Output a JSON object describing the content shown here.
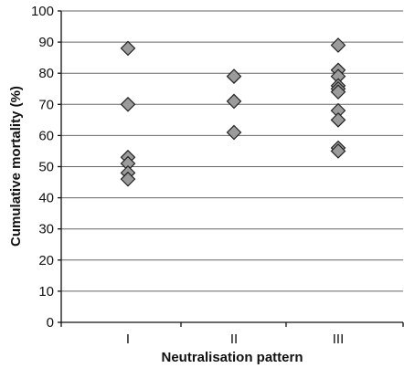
{
  "chart_data": {
    "type": "scatter",
    "title": "",
    "xlabel": "Neutralisation pattern",
    "ylabel": "Cumulative mortality (%)",
    "categories": [
      "I",
      "II",
      "III"
    ],
    "ylim": [
      0,
      100
    ],
    "yticks": [
      0,
      10,
      20,
      30,
      40,
      50,
      60,
      70,
      80,
      90,
      100
    ],
    "grid": true,
    "legend": "none",
    "marker": "diamond",
    "marker_color": "#9b9b9b",
    "series": [
      {
        "category": "I",
        "values": [
          88,
          70,
          53,
          51,
          48,
          46
        ]
      },
      {
        "category": "II",
        "values": [
          79,
          71,
          61
        ]
      },
      {
        "category": "III",
        "values": [
          89,
          81,
          79,
          76,
          75,
          74,
          68,
          65,
          56,
          55
        ]
      }
    ]
  }
}
